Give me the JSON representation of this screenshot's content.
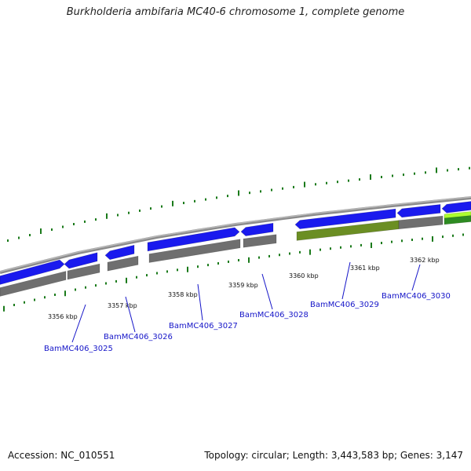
{
  "title": "Burkholderia ambifaria MC40-6 chromosome 1, complete genome",
  "footer": {
    "accession": "Accession: NC_010551",
    "topology": "Topology: circular; Length: 3,443,583 bp; Genes: 3,147"
  },
  "colors": {
    "gene_blue": "#1a1aee",
    "gene_gray": "#6f6f6f",
    "gene_olive": "#6b8e23",
    "gene_lime": "#adff2f",
    "gene_green": "#2e8b22",
    "tick_green": "#1a7a1a",
    "backbone": "#8a8a8a",
    "label_blue": "#1515c8"
  },
  "kbp_labels": [
    "3356 kbp",
    "3357 kbp",
    "3358 kbp",
    "3359 kbp",
    "3360 kbp",
    "3361 kbp",
    "3362 kbp"
  ],
  "gene_labels": [
    "BamMC406_3025",
    "BamMC406_3026",
    "BamMC406_3027",
    "BamMC406_3028",
    "BamMC406_3029",
    "BamMC406_3030"
  ]
}
